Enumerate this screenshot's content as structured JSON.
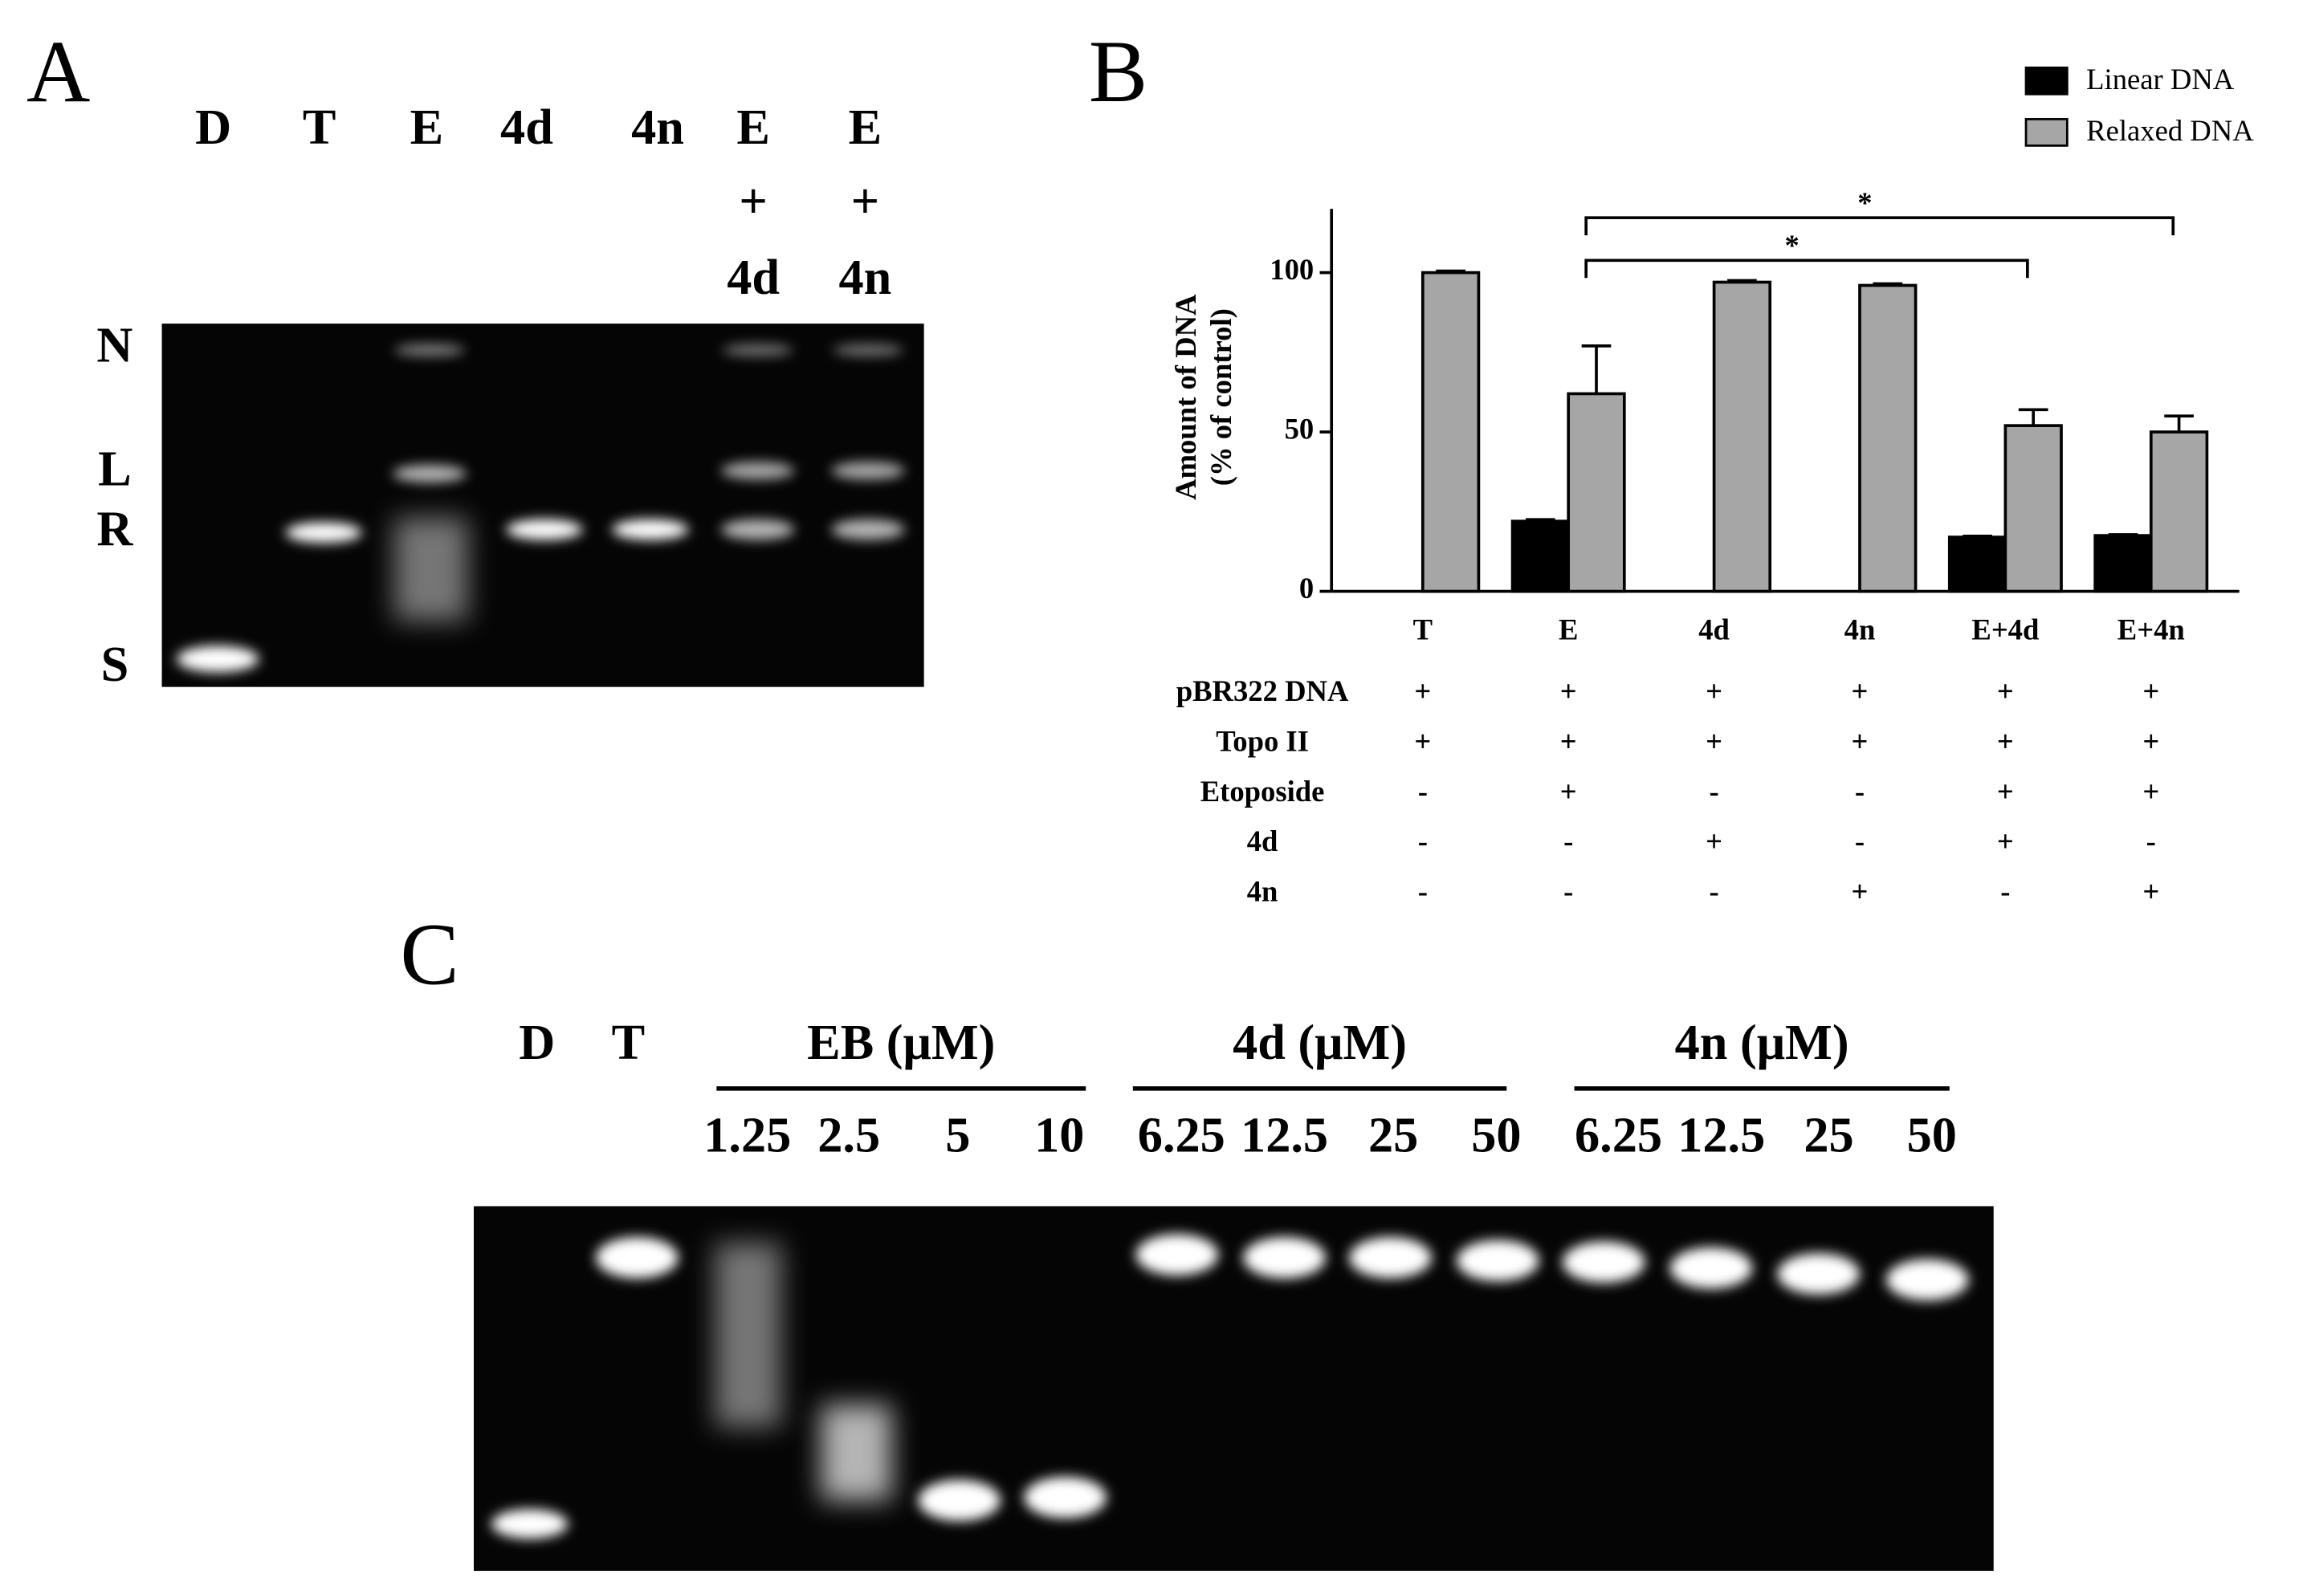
{
  "panel_a": {
    "label": "A",
    "lanes": [
      [
        "D"
      ],
      [
        "T"
      ],
      [
        "E"
      ],
      [
        "4d"
      ],
      [
        "4n"
      ],
      [
        "E",
        "+",
        "4d"
      ],
      [
        "E",
        "+",
        "4n"
      ]
    ],
    "bands": [
      "N",
      "L",
      "R",
      "S"
    ]
  },
  "chart_data": {
    "type": "bar",
    "label": "B",
    "y_label": [
      "Amount of DNA",
      "(% of control)"
    ],
    "categories": [
      "T",
      "E",
      "4d",
      "4n",
      "E+4d",
      "E+4n"
    ],
    "series": [
      {
        "name": "Linear DNA",
        "color": "#000000",
        "values": [
          0,
          22,
          0,
          0,
          17,
          17.5
        ],
        "errors": [
          0,
          0.5,
          0,
          0,
          0.3,
          0.3
        ]
      },
      {
        "name": "Relaxed DNA",
        "color": "#a6a6a6",
        "values": [
          100,
          62,
          97,
          96,
          52,
          50
        ],
        "errors": [
          0.5,
          15,
          0.5,
          0.5,
          5,
          5
        ]
      }
    ],
    "ylim": [
      0,
      120
    ],
    "yticks": [
      0,
      50,
      100
    ],
    "annotations": [
      "*",
      "*"
    ]
  },
  "panel_b_table": {
    "row_labels": [
      "pBR322 DNA",
      "Topo II",
      "Etoposide",
      "4d",
      "4n"
    ],
    "rows": [
      [
        "+",
        "+",
        "+",
        "+",
        "+",
        "+"
      ],
      [
        "+",
        "+",
        "+",
        "+",
        "+",
        "+"
      ],
      [
        "-",
        "+",
        "-",
        "-",
        "+",
        "+"
      ],
      [
        "-",
        "-",
        "+",
        "-",
        "+",
        "-"
      ],
      [
        "-",
        "-",
        "-",
        "+",
        "-",
        "+"
      ]
    ]
  },
  "panel_c": {
    "label": "C",
    "lanes": [
      "D",
      "T"
    ],
    "groups": [
      {
        "label": "EB (μM)",
        "concentrations": [
          "1.25",
          "2.5",
          "5",
          "10"
        ]
      },
      {
        "label": "4d (μM)",
        "concentrations": [
          "6.25",
          "12.5",
          "25",
          "50"
        ]
      },
      {
        "label": "4n (μM)",
        "concentrations": [
          "6.25",
          "12.5",
          "25",
          "50"
        ]
      }
    ]
  }
}
